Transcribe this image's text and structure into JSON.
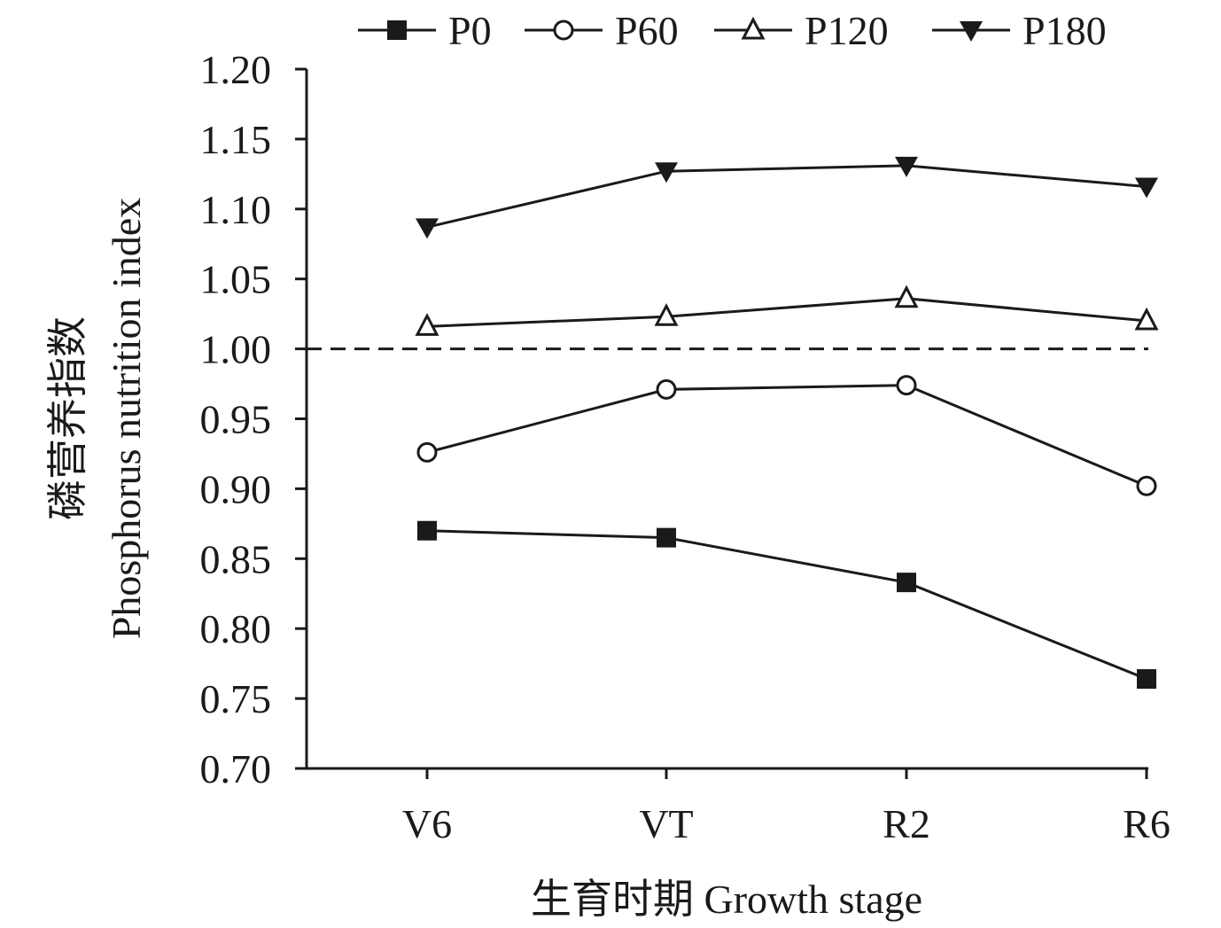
{
  "chart_data": {
    "type": "line",
    "categories": [
      "V6",
      "VT",
      "R2",
      "R6"
    ],
    "series": [
      {
        "name": "P0",
        "marker": "square-filled",
        "values": [
          0.87,
          0.865,
          0.833,
          0.764
        ]
      },
      {
        "name": "P60",
        "marker": "circle-open",
        "values": [
          0.926,
          0.971,
          0.974,
          0.902
        ]
      },
      {
        "name": "P120",
        "marker": "triangle-up-open",
        "values": [
          1.016,
          1.023,
          1.036,
          1.02
        ]
      },
      {
        "name": "P180",
        "marker": "triangle-down-filled",
        "values": [
          1.087,
          1.127,
          1.131,
          1.116
        ]
      }
    ],
    "ylim": [
      0.7,
      1.2
    ],
    "yticks": [
      "0.70",
      "0.75",
      "0.80",
      "0.85",
      "0.90",
      "0.95",
      "1.00",
      "1.05",
      "1.10",
      "1.15",
      "1.20"
    ],
    "reference_line": {
      "y": 1.0,
      "style": "dashed"
    },
    "xlabel": "生育时期 Growth stage",
    "ylabel_zh": "磷营养指数",
    "ylabel_en": "Phosphorus nutrition index",
    "legend_position": "top",
    "grid": false,
    "colors": {
      "line": "#1a1a1a",
      "background": "#ffffff"
    }
  }
}
